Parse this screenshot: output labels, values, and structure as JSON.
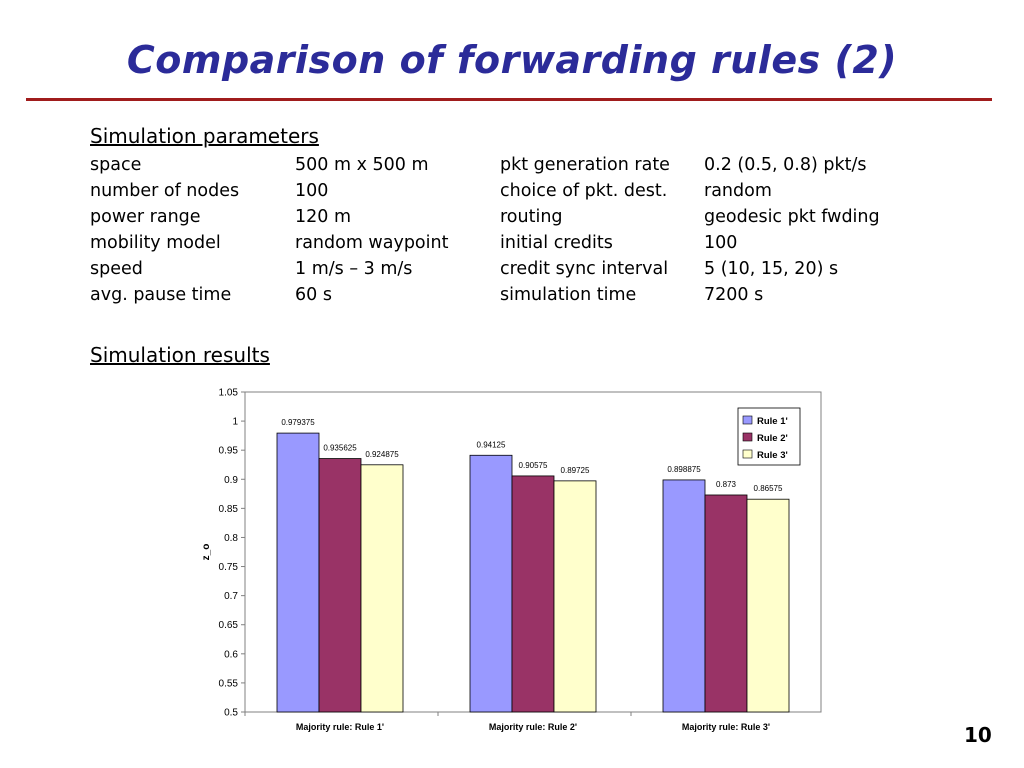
{
  "slide": {
    "title": "Comparison of forwarding rules (2)",
    "params_heading": "Simulation parameters",
    "results_heading": "Simulation results",
    "page_number": "10"
  },
  "params": [
    {
      "k1": "space",
      "v1": "500 m x 500 m",
      "k2": "pkt generation rate",
      "v2": "0.2 (0.5, 0.8) pkt/s"
    },
    {
      "k1": "number of nodes",
      "v1": "100",
      "k2": "choice of pkt. dest.",
      "v2": "random"
    },
    {
      "k1": "power range",
      "v1": "120 m",
      "k2": "routing",
      "v2": "geodesic pkt fwding"
    },
    {
      "k1": "mobility model",
      "v1": "random waypoint",
      "k2": "initial credits",
      "v2": "100"
    },
    {
      "k1": "speed",
      "v1": "1 m/s – 3 m/s",
      "k2": "credit sync interval",
      "v2": "5 (10, 15, 20) s"
    },
    {
      "k1": "avg. pause time",
      "v1": "60 s",
      "k2": "simulation time",
      "v2": "7200 s"
    }
  ],
  "chart_data": {
    "type": "bar",
    "categories": [
      "Majority rule: Rule 1'",
      "Majority rule: Rule 2'",
      "Majority rule: Rule 3'"
    ],
    "series": [
      {
        "name": "Rule 1'",
        "color": "#9999ff",
        "values": [
          0.979375,
          0.94125,
          0.898875
        ],
        "labels": [
          "0.979375",
          "0.94125",
          "0.898875"
        ]
      },
      {
        "name": "Rule 2'",
        "color": "#993366",
        "values": [
          0.935625,
          0.90575,
          0.873
        ],
        "labels": [
          "0.935625",
          "0.90575",
          "0.873"
        ]
      },
      {
        "name": "Rule 3'",
        "color": "#ffffcc",
        "values": [
          0.924875,
          0.89725,
          0.86575
        ],
        "labels": [
          "0.924875",
          "0.89725",
          "0.86575"
        ]
      }
    ],
    "ylabel": "z_o",
    "xlabel": "",
    "ylim": [
      0.5,
      1.05
    ],
    "yticks": [
      "0.5",
      "0.55",
      "0.6",
      "0.65",
      "0.7",
      "0.75",
      "0.8",
      "0.85",
      "0.9",
      "0.95",
      "1",
      "1.05"
    ],
    "legend": "top-right",
    "grid": false
  }
}
